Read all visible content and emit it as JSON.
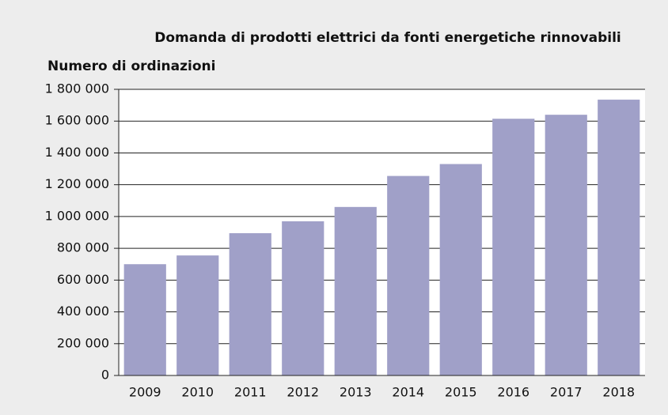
{
  "chart_data": {
    "type": "bar",
    "title": "Domanda di prodotti elettrici da fonti energetiche rinnovabili",
    "y_label": "Numero di ordinazioni",
    "categories": [
      "2009",
      "2010",
      "2011",
      "2012",
      "2013",
      "2014",
      "2015",
      "2016",
      "2017",
      "2018"
    ],
    "values": [
      700000,
      755000,
      895000,
      970000,
      1060000,
      1255000,
      1330000,
      1615000,
      1640000,
      1735000
    ],
    "color": "#a0a0c8",
    "ylim": [
      0,
      1800000
    ],
    "yticks": [
      0,
      {
        "value": 200000,
        "label": "200 000"
      },
      {
        "value": 400000,
        "label": "400 000"
      },
      {
        "value": 600000,
        "label": "600 000"
      },
      {
        "value": 800000,
        "label": "800 000"
      },
      {
        "value": 1000000,
        "label": "1 000 000"
      },
      {
        "value": 1200000,
        "label": "1 200 000"
      },
      {
        "value": 1400000,
        "label": "1 400 000"
      },
      {
        "value": 1600000,
        "label": "1 600 000"
      },
      {
        "value": 1800000,
        "label": "1 800 000"
      }
    ],
    "grid": true
  }
}
